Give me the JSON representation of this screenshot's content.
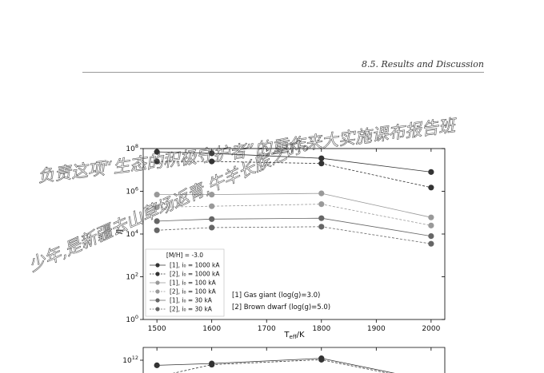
{
  "header": {
    "section": "8.5.  Results and Discussion"
  },
  "chart_data": [
    {
      "type": "line",
      "x": [
        1500,
        1600,
        1800,
        2000
      ],
      "xlabel": "T_eff/K",
      "ylabel": "/J",
      "yscale": "log",
      "xlim": [
        1475,
        2025
      ],
      "ylim": [
        1,
        100000000
      ],
      "xticks": [
        "1500",
        "1600",
        "1700",
        "1800",
        "1900",
        "2000"
      ],
      "yticks": [
        {
          "base": "10",
          "exp": "0"
        },
        {
          "base": "10",
          "exp": "2"
        },
        {
          "base": "10",
          "exp": "4"
        },
        {
          "base": "10",
          "exp": "6"
        },
        {
          "base": "10",
          "exp": "8"
        }
      ],
      "legend_title": "[M/H] = -3.0",
      "legend_placement": "lower-left",
      "series": [
        {
          "name": "[1], i₀ = 1000 kA",
          "style": "solid",
          "color": "#333333",
          "values": [
            70000000,
            60000000,
            35000000,
            8000000
          ]
        },
        {
          "name": "[2], i₀ = 1000 kA",
          "style": "dashed",
          "color": "#333333",
          "values": [
            25000000,
            25000000,
            20000000,
            1500000
          ]
        },
        {
          "name": "[1], i₀ = 100 kA",
          "style": "solid",
          "color": "#999999",
          "values": [
            700000,
            700000,
            800000,
            60000
          ]
        },
        {
          "name": "[2], i₀ = 100 kA",
          "style": "dashed",
          "color": "#999999",
          "values": [
            180000,
            200000,
            250000,
            25000
          ]
        },
        {
          "name": "[1], i₀ = 30 kA",
          "style": "solid",
          "color": "#666666",
          "values": [
            40000,
            50000,
            55000,
            8000
          ]
        },
        {
          "name": "[2], i₀ = 30 kA",
          "style": "dashed",
          "color": "#666666",
          "values": [
            15000,
            20000,
            22000,
            3500
          ]
        }
      ],
      "annotations": [
        "[1] Gas giant (log(g)=3.0)",
        "[2] Brown dwarf (log(g)=5.0)"
      ],
      "grid": false
    },
    {
      "type": "line",
      "x": [
        1500,
        1600,
        1800,
        2000
      ],
      "yscale": "log",
      "xlim": [
        1475,
        2025
      ],
      "yticks": [
        {
          "base": "10",
          "exp": "12"
        }
      ],
      "series": [
        {
          "style": "solid",
          "color": "#333333",
          "values": [
            400000000000,
            550000000000,
            1400000000000,
            25000000000
          ]
        },
        {
          "style": "dashed",
          "color": "#333333",
          "values": [
            50000000000,
            450000000000,
            1100000000000,
            20000000000
          ]
        }
      ]
    }
  ],
  "handwriting": [
    "负责这项“生态的积极守护者”的重作来大实施课布报告班",
    "少年,是新疆去山草场返青,牛羊长膑之时。"
  ]
}
